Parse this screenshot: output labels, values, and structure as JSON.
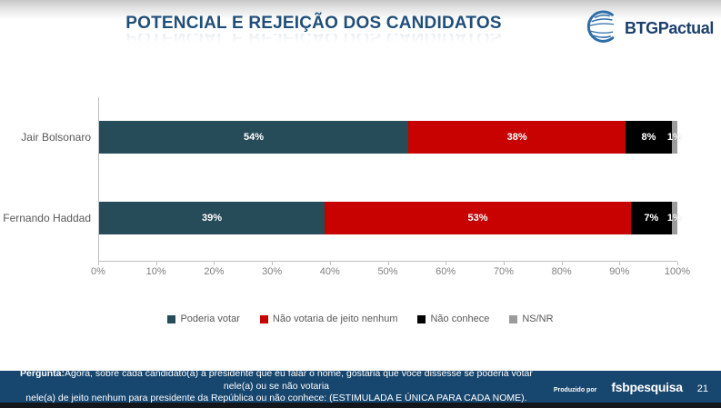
{
  "header": {
    "title": "POTENCIAL E REJEIÇÃO DOS CANDIDATOS",
    "logo": {
      "icon": "globe-icon",
      "brand_bold": "BTG",
      "brand_regular": "Pactual",
      "brand_color": "#1C3F6E"
    }
  },
  "chart_data": {
    "type": "bar",
    "orientation": "horizontal",
    "stacked": true,
    "title": "POTENCIAL E REJEIÇÃO DOS CANDIDATOS",
    "categories": [
      "Jair Bolsonaro",
      "Fernando Haddad"
    ],
    "series": [
      {
        "name": "Poderia votar",
        "color": "#264C5A",
        "values": [
          54,
          39
        ]
      },
      {
        "name": "Não votaria de jeito nenhum",
        "color": "#C80101",
        "values": [
          38,
          53
        ]
      },
      {
        "name": "Não conhece",
        "color": "#000000",
        "values": [
          8,
          7
        ]
      },
      {
        "name": "NS/NR",
        "color": "#9B9B9B",
        "values": [
          1,
          1
        ]
      }
    ],
    "value_suffix": "%",
    "xlim": [
      0,
      100
    ],
    "x_ticks": [
      "0%",
      "10%",
      "20%",
      "30%",
      "40%",
      "50%",
      "60%",
      "70%",
      "80%",
      "90%",
      "100%"
    ],
    "grid": false,
    "legend_position": "bottom"
  },
  "footer": {
    "question_label": "Pergunta:",
    "question_line1": "Agora, sobre cada candidato(a) a presidente que eu falar o nome, gostaria que você dissesse se poderia votar nele(a) ou se não votaria",
    "question_line2": "nele(a) de jeito nenhum para presidente da República ou não conhece:  (ESTIMULADA E ÚNICA PARA CADA NOME).",
    "produced_by_label": "Produzido por",
    "producer_bold": "fsb",
    "producer_regular": "pesquisa",
    "page_number": "21"
  }
}
